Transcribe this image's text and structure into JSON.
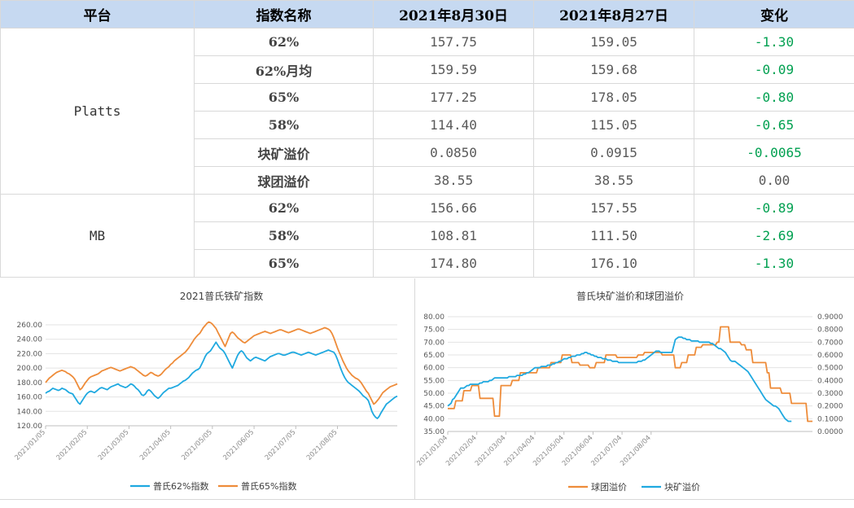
{
  "table": {
    "headers": [
      "平台",
      "指数名称",
      "2021年8月30日",
      "2021年8月27日",
      "变化"
    ],
    "groups": [
      {
        "platform": "Platts",
        "rows": [
          {
            "name": "62%",
            "d1": "157.75",
            "d2": "159.05",
            "chg": "-1.30"
          },
          {
            "name": "62%月均",
            "d1": "159.59",
            "d2": "159.68",
            "chg": "-0.09"
          },
          {
            "name": "65%",
            "d1": "177.25",
            "d2": "178.05",
            "chg": "-0.80"
          },
          {
            "name": "58%",
            "d1": "114.40",
            "d2": "115.05",
            "chg": "-0.65"
          },
          {
            "name": "块矿溢价",
            "d1": "0.0850",
            "d2": "0.0915",
            "chg": "-0.0065"
          },
          {
            "name": "球团溢价",
            "d1": "38.55",
            "d2": "38.55",
            "chg": "0.00"
          }
        ]
      },
      {
        "platform": "MB",
        "rows": [
          {
            "name": "62%",
            "d1": "156.66",
            "d2": "157.55",
            "chg": "-0.89"
          },
          {
            "name": "58%",
            "d1": "108.81",
            "d2": "111.50",
            "chg": "-2.69"
          },
          {
            "name": "65%",
            "d1": "174.80",
            "d2": "176.10",
            "chg": "-1.30"
          }
        ]
      }
    ]
  },
  "colors": {
    "header_bg": "#c6d9f1",
    "negative": "#00a050",
    "blue": "#1fa9e0",
    "orange": "#ee8c3a"
  },
  "chart_data": [
    {
      "type": "line",
      "title": "2021普氏铁矿指数",
      "ylim": [
        120,
        260
      ],
      "yticks": [
        "120.00",
        "140.00",
        "160.00",
        "180.00",
        "200.00",
        "220.00",
        "240.00",
        "260.00"
      ],
      "xticks": [
        "2021/01/05",
        "2021/02/05",
        "2021/03/05",
        "2021/04/05",
        "2021/05/05",
        "2021/06/05",
        "2021/07/05",
        "2021/08/05"
      ],
      "xtick_index": [
        0,
        23,
        46,
        69,
        92,
        115,
        138,
        161
      ],
      "legend_position": "bottom",
      "series": [
        {
          "name": "普氏62%指数",
          "color": "#1fa9e0",
          "values": [
            165,
            167,
            168,
            170,
            172,
            171,
            170,
            169,
            170,
            172,
            171,
            170,
            168,
            166,
            165,
            164,
            160,
            156,
            152,
            150,
            154,
            158,
            162,
            165,
            167,
            168,
            167,
            166,
            168,
            170,
            172,
            173,
            172,
            171,
            170,
            172,
            174,
            175,
            176,
            177,
            178,
            176,
            175,
            174,
            173,
            174,
            176,
            178,
            177,
            175,
            172,
            170,
            167,
            163,
            162,
            164,
            168,
            170,
            168,
            165,
            162,
            160,
            158,
            160,
            163,
            166,
            168,
            170,
            172,
            172,
            173,
            174,
            175,
            176,
            178,
            180,
            182,
            183,
            185,
            187,
            190,
            193,
            195,
            197,
            198,
            200,
            205,
            210,
            216,
            220,
            222,
            224,
            228,
            232,
            236,
            232,
            228,
            226,
            224,
            220,
            215,
            210,
            205,
            200,
            206,
            212,
            218,
            222,
            224,
            222,
            218,
            214,
            212,
            210,
            212,
            214,
            215,
            214,
            213,
            212,
            211,
            210,
            212,
            214,
            216,
            217,
            218,
            219,
            220,
            220,
            219,
            218,
            218,
            219,
            220,
            221,
            222,
            222,
            221,
            220,
            219,
            218,
            219,
            220,
            221,
            222,
            221,
            220,
            219,
            218,
            219,
            220,
            221,
            222,
            223,
            224,
            225,
            224,
            223,
            222,
            218,
            212,
            205,
            198,
            192,
            187,
            183,
            180,
            178,
            176,
            174,
            172,
            170,
            168,
            165,
            162,
            160,
            158,
            155,
            148,
            140,
            135,
            132,
            130,
            133,
            138,
            142,
            146,
            150,
            152,
            154,
            156,
            158,
            160,
            161
          ]
        },
        {
          "name": "普氏65%指数",
          "color": "#ee8c3a",
          "values": [
            180,
            183,
            186,
            188,
            190,
            192,
            194,
            195,
            196,
            197,
            196,
            195,
            193,
            192,
            190,
            188,
            185,
            180,
            175,
            170,
            172,
            176,
            180,
            183,
            186,
            188,
            189,
            190,
            191,
            192,
            194,
            196,
            197,
            198,
            199,
            200,
            201,
            200,
            199,
            198,
            197,
            196,
            197,
            198,
            199,
            200,
            201,
            202,
            201,
            200,
            198,
            196,
            194,
            192,
            190,
            189,
            190,
            192,
            194,
            193,
            191,
            190,
            189,
            190,
            192,
            195,
            198,
            200,
            202,
            205,
            207,
            210,
            212,
            214,
            216,
            218,
            220,
            222,
            225,
            228,
            232,
            236,
            240,
            243,
            246,
            248,
            252,
            256,
            259,
            262,
            264,
            263,
            261,
            258,
            255,
            250,
            245,
            240,
            235,
            230,
            236,
            242,
            248,
            250,
            248,
            245,
            242,
            240,
            238,
            236,
            235,
            237,
            239,
            241,
            243,
            245,
            246,
            247,
            248,
            249,
            250,
            251,
            250,
            249,
            248,
            249,
            250,
            251,
            252,
            253,
            253,
            252,
            251,
            250,
            249,
            250,
            251,
            252,
            253,
            254,
            254,
            253,
            252,
            251,
            250,
            249,
            248,
            249,
            250,
            251,
            252,
            253,
            254,
            255,
            256,
            255,
            254,
            252,
            248,
            242,
            235,
            228,
            222,
            216,
            210,
            205,
            200,
            196,
            193,
            190,
            188,
            186,
            185,
            183,
            180,
            176,
            172,
            168,
            165,
            160,
            155,
            150,
            152,
            155,
            158,
            162,
            166,
            168,
            170,
            172,
            174,
            175,
            176,
            177,
            178
          ]
        }
      ]
    },
    {
      "type": "line",
      "title": "普氏块矿溢价和球团溢价",
      "ylim": [
        35,
        80
      ],
      "y2lim": [
        0,
        0.9
      ],
      "yticks": [
        "35.00",
        "40.00",
        "45.00",
        "50.00",
        "55.00",
        "60.00",
        "65.00",
        "70.00",
        "75.00",
        "80.00"
      ],
      "y2ticks": [
        "0.0000",
        "0.1000",
        "0.2000",
        "0.3000",
        "0.4000",
        "0.5000",
        "0.6000",
        "0.7000",
        "0.8000",
        "0.9000"
      ],
      "xticks": [
        "2021/01/04",
        "2021/02/04",
        "2021/03/04",
        "2021/04/04",
        "2021/05/04",
        "2021/06/04",
        "2021/07/04",
        "2021/08/04"
      ],
      "xtick_index": [
        0,
        18,
        36,
        54,
        72,
        90,
        108,
        126
      ],
      "legend_position": "bottom",
      "series": [
        {
          "name": "球团溢价",
          "color": "#ee8c3a",
          "axis": "left",
          "values": [
            44,
            44,
            44,
            44,
            44,
            47,
            47,
            47,
            47,
            47,
            51,
            51,
            51,
            51,
            51,
            53,
            53,
            53,
            53,
            53,
            48,
            48,
            48,
            48,
            48,
            48,
            48,
            48,
            48,
            41,
            41,
            41,
            41,
            53,
            53,
            53,
            53,
            53,
            53,
            53,
            55,
            55,
            55,
            55,
            55,
            58,
            58,
            58,
            58,
            58,
            58,
            58,
            58,
            58,
            58,
            58,
            60,
            60,
            60,
            60,
            60,
            60,
            60,
            60,
            62,
            62,
            62,
            62,
            62,
            62,
            62,
            65,
            65,
            65,
            65,
            65,
            65,
            62,
            62,
            62,
            62,
            62,
            61,
            61,
            61,
            61,
            61,
            61,
            60,
            60,
            60,
            60,
            62,
            62,
            62,
            62,
            62,
            62,
            65,
            65,
            65,
            65,
            65,
            65,
            65,
            64,
            64,
            64,
            64,
            64,
            64,
            64,
            64,
            64,
            64,
            64,
            64,
            64,
            65,
            65,
            65,
            65,
            66,
            66,
            66,
            66,
            66,
            66,
            66,
            66,
            66,
            66,
            66,
            65,
            65,
            65,
            65,
            65,
            65,
            65,
            65,
            60,
            60,
            60,
            60,
            62,
            62,
            62,
            62,
            65,
            65,
            65,
            65,
            65,
            68,
            68,
            68,
            68,
            69,
            69,
            69,
            69,
            69,
            69,
            69,
            69,
            69,
            70,
            70,
            76,
            76,
            76,
            76,
            76,
            76,
            70,
            70,
            70,
            70,
            70,
            70,
            70,
            69,
            69,
            69,
            67,
            67,
            67,
            67,
            62,
            62,
            62,
            62,
            62,
            62,
            62,
            62,
            62,
            58,
            58,
            52,
            52,
            52,
            52,
            52,
            52,
            52,
            50,
            50,
            50,
            50,
            50,
            50,
            46,
            46,
            46,
            46,
            46,
            46,
            46,
            46,
            46,
            46,
            39,
            39,
            39,
            39
          ]
        },
        {
          "name": "块矿溢价",
          "color": "#1fa9e0",
          "axis": "right",
          "values": [
            0.2,
            0.21,
            0.22,
            0.25,
            0.26,
            0.28,
            0.3,
            0.32,
            0.34,
            0.34,
            0.34,
            0.35,
            0.36,
            0.36,
            0.37,
            0.37,
            0.37,
            0.37,
            0.37,
            0.37,
            0.38,
            0.38,
            0.39,
            0.39,
            0.39,
            0.39,
            0.4,
            0.4,
            0.41,
            0.42,
            0.42,
            0.42,
            0.42,
            0.42,
            0.42,
            0.42,
            0.42,
            0.42,
            0.43,
            0.43,
            0.43,
            0.43,
            0.43,
            0.44,
            0.44,
            0.44,
            0.44,
            0.45,
            0.45,
            0.46,
            0.46,
            0.47,
            0.48,
            0.49,
            0.5,
            0.5,
            0.5,
            0.5,
            0.51,
            0.51,
            0.51,
            0.51,
            0.52,
            0.52,
            0.52,
            0.53,
            0.53,
            0.54,
            0.54,
            0.55,
            0.55,
            0.56,
            0.57,
            0.57,
            0.57,
            0.58,
            0.58,
            0.59,
            0.59,
            0.59,
            0.6,
            0.6,
            0.6,
            0.61,
            0.61,
            0.62,
            0.62,
            0.61,
            0.61,
            0.6,
            0.6,
            0.59,
            0.59,
            0.58,
            0.58,
            0.58,
            0.57,
            0.57,
            0.57,
            0.56,
            0.56,
            0.56,
            0.55,
            0.55,
            0.55,
            0.55,
            0.54,
            0.54,
            0.54,
            0.54,
            0.54,
            0.54,
            0.54,
            0.54,
            0.54,
            0.54,
            0.54,
            0.54,
            0.55,
            0.55,
            0.55,
            0.56,
            0.56,
            0.57,
            0.58,
            0.59,
            0.6,
            0.61,
            0.62,
            0.63,
            0.63,
            0.63,
            0.62,
            0.62,
            0.62,
            0.62,
            0.62,
            0.62,
            0.62,
            0.62,
            0.67,
            0.72,
            0.73,
            0.74,
            0.74,
            0.74,
            0.73,
            0.73,
            0.72,
            0.72,
            0.72,
            0.71,
            0.71,
            0.71,
            0.71,
            0.71,
            0.7,
            0.7,
            0.7,
            0.7,
            0.7,
            0.7,
            0.7,
            0.69,
            0.69,
            0.68,
            0.67,
            0.66,
            0.65,
            0.65,
            0.64,
            0.63,
            0.62,
            0.6,
            0.58,
            0.56,
            0.55,
            0.55,
            0.55,
            0.54,
            0.53,
            0.52,
            0.51,
            0.5,
            0.49,
            0.48,
            0.47,
            0.45,
            0.43,
            0.41,
            0.39,
            0.37,
            0.35,
            0.33,
            0.31,
            0.29,
            0.27,
            0.25,
            0.24,
            0.23,
            0.22,
            0.21,
            0.2,
            0.2,
            0.19,
            0.18,
            0.16,
            0.14,
            0.12,
            0.1,
            0.09,
            0.08,
            0.08,
            0.08
          ]
        }
      ]
    }
  ]
}
